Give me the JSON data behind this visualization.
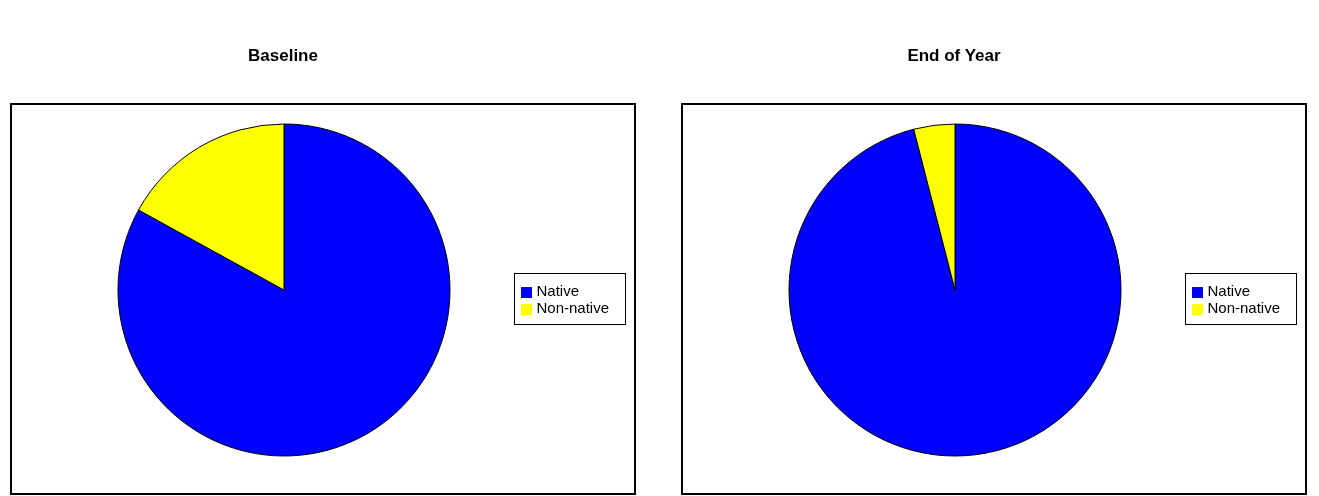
{
  "chart_data": [
    {
      "type": "pie",
      "title": "Baseline",
      "categories": [
        "Native",
        "Non-native"
      ],
      "values": [
        83,
        17
      ],
      "colors": [
        "#0000ff",
        "#ffff00"
      ],
      "legend": "right"
    },
    {
      "type": "pie",
      "title": "End of Year",
      "categories": [
        "Native",
        "Non-native"
      ],
      "values": [
        96,
        4
      ],
      "colors": [
        "#0000ff",
        "#ffff00"
      ],
      "legend": "right"
    }
  ]
}
